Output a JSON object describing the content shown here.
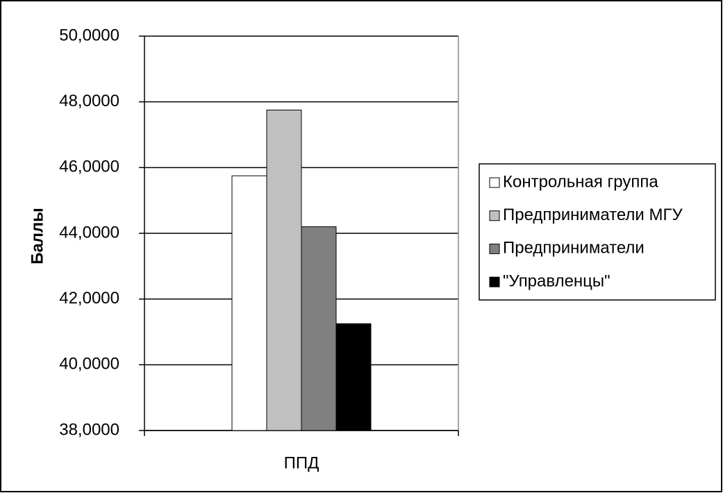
{
  "chart_data": {
    "type": "bar",
    "y_label": "Баллы",
    "categories": [
      "ППД"
    ],
    "series": [
      {
        "name": "Контрольная группа",
        "color": "#ffffff",
        "values": [
          45.75
        ]
      },
      {
        "name": "Предприниматели МГУ",
        "color": "#c0c0c0",
        "values": [
          47.75
        ]
      },
      {
        "name": "Предприниматели",
        "color": "#808080",
        "values": [
          44.2
        ]
      },
      {
        "name": "\"Управленцы\"",
        "color": "#000000",
        "values": [
          41.25
        ]
      }
    ],
    "ylim": [
      38,
      50
    ],
    "yticks": [
      {
        "value": 38,
        "label": "38,0000"
      },
      {
        "value": 40,
        "label": "40,0000"
      },
      {
        "value": 42,
        "label": "42,0000"
      },
      {
        "value": 44,
        "label": "44,0000"
      },
      {
        "value": 46,
        "label": "46,0000"
      },
      {
        "value": 48,
        "label": "48,0000"
      },
      {
        "value": 50,
        "label": "50,0000"
      }
    ],
    "grid": true,
    "legend": "right"
  }
}
